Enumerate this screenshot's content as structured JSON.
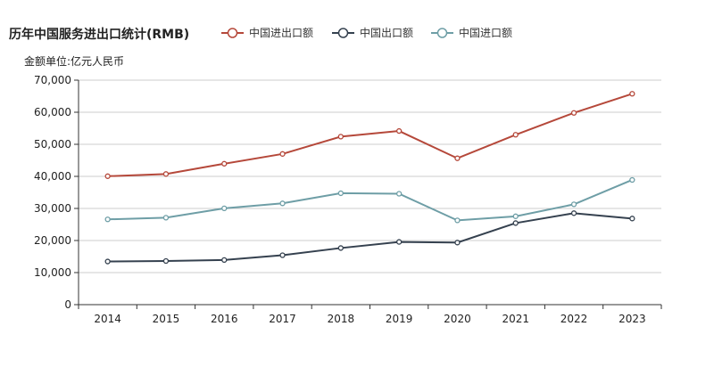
{
  "chart_data": {
    "type": "line",
    "title": "历年中国服务进出口统计(RMB)",
    "ylabel": "金额单位:亿元人民币",
    "xlabel": "",
    "categories": [
      "2014",
      "2015",
      "2016",
      "2017",
      "2018",
      "2019",
      "2020",
      "2021",
      "2022",
      "2023"
    ],
    "ylim": [
      0,
      70000
    ],
    "yticks": [
      "0",
      "10,000",
      "20,000",
      "30,000",
      "40,000",
      "50,000",
      "60,000",
      "70,000"
    ],
    "grid": true,
    "legend_position": "top",
    "series": [
      {
        "name": "中国进出口额",
        "color": "#b5483a",
        "values": [
          40053,
          40745,
          43947,
          46991,
          52402,
          54153,
          45643,
          52983,
          59802,
          65754
        ]
      },
      {
        "name": "中国出口额",
        "color": "#35414f",
        "values": [
          13461,
          13617,
          13918,
          15407,
          17658,
          19564,
          19357,
          25435,
          28522,
          26856
        ]
      },
      {
        "name": "中国进口额",
        "color": "#6e9ea6",
        "values": [
          26592,
          27128,
          30030,
          31584,
          34744,
          34589,
          26286,
          27548,
          31280,
          38898
        ]
      }
    ]
  }
}
